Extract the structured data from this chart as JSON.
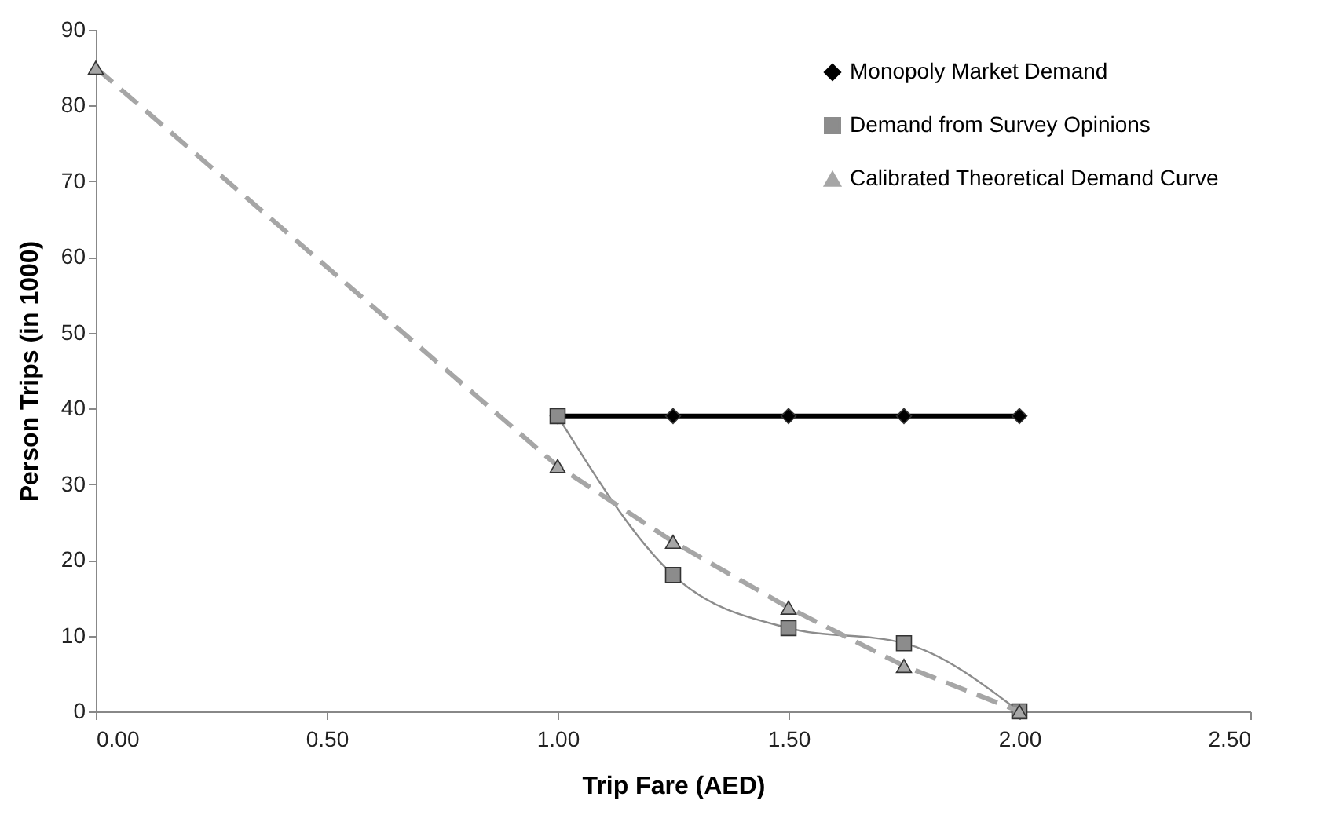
{
  "chart_data": {
    "type": "line",
    "xlabel": "Trip Fare (AED)",
    "ylabel": "Person Trips (in 1000)",
    "xlim": [
      0,
      2.5
    ],
    "xticks": [
      {
        "value": 0,
        "label": "0.00"
      },
      {
        "value": 0.5,
        "label": "0.50"
      },
      {
        "value": 1,
        "label": "1.00"
      },
      {
        "value": 1.5,
        "label": "1.50"
      },
      {
        "value": 2,
        "label": "2.00"
      },
      {
        "value": 2.5,
        "label": "2.50"
      }
    ],
    "ylim": [
      0,
      90
    ],
    "yticks": [
      0,
      10,
      20,
      30,
      40,
      50,
      60,
      70,
      80,
      90
    ],
    "grid": false,
    "legend": "top right",
    "series": [
      {
        "name": "Monopoly Market Demand",
        "color": "#000000",
        "marker": "diamond",
        "line_style": "solid",
        "x": [
          1,
          1.25,
          1.5,
          1.75,
          2
        ],
        "values": [
          39,
          39,
          39,
          39,
          39
        ]
      },
      {
        "name": "Demand from Survey Opinions",
        "color": "#8c8c8c",
        "marker": "square",
        "line_style": "solid",
        "x": [
          1,
          1.25,
          1.5,
          1.75,
          2
        ],
        "values": [
          39,
          18,
          11,
          9,
          0
        ]
      },
      {
        "name": "Calibrated Theoretical Demand Curve",
        "color": "#a6a6a6",
        "marker": "triangle",
        "line_style": "dashed",
        "x": [
          0,
          1,
          1.25,
          1.5,
          1.75,
          2
        ],
        "values": [
          85,
          32.4,
          22.4,
          13.7,
          6,
          0
        ]
      }
    ]
  }
}
